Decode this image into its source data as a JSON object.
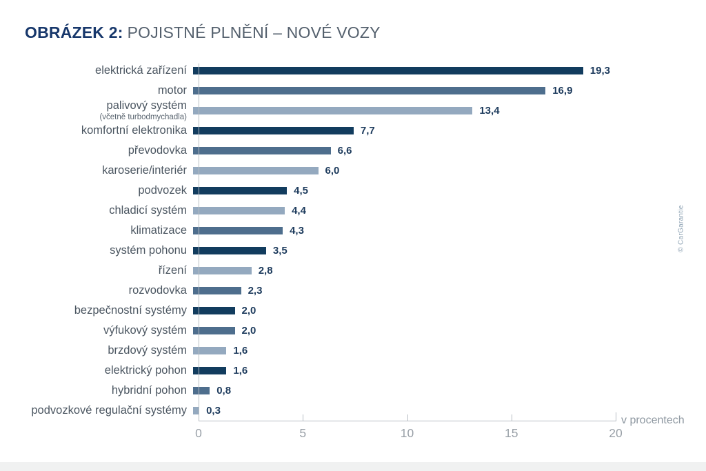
{
  "title": {
    "prefix": "OBRÁZEK 2:",
    "rest": "POJISTNÉ PLNĚNÍ – NOVÉ VOZY"
  },
  "watermark": "© CarGarantie",
  "axis": {
    "unit_label": "v procentech",
    "tick_labels": [
      "0",
      "5",
      "10",
      "15",
      "20"
    ],
    "max": 20
  },
  "colors": {
    "dark": "#123c5e",
    "medium": "#4e6e8d",
    "light": "#94a9bf"
  },
  "chart_data": {
    "type": "bar",
    "orientation": "horizontal",
    "title": "OBRÁZEK 2: POJISTNÉ PLNĚNÍ – NOVÉ VOZY",
    "xlabel": "v procentech",
    "xlim": [
      0,
      20
    ],
    "x_ticks": [
      0,
      5,
      10,
      15,
      20
    ],
    "grid": false,
    "legend": "none",
    "rows": [
      {
        "label": "elektrická zařízení",
        "sublabel": "",
        "value": 19.3,
        "display": "19,3",
        "color": "dark"
      },
      {
        "label": "motor",
        "sublabel": "",
        "value": 16.9,
        "display": "16,9",
        "color": "medium"
      },
      {
        "label": "palivový systém",
        "sublabel": "(včetně turbodmychadla)",
        "value": 13.4,
        "display": "13,4",
        "color": "light"
      },
      {
        "label": "komfortní elektronika",
        "sublabel": "",
        "value": 7.7,
        "display": "7,7",
        "color": "dark"
      },
      {
        "label": "převodovka",
        "sublabel": "",
        "value": 6.6,
        "display": "6,6",
        "color": "medium"
      },
      {
        "label": "karoserie/interiér",
        "sublabel": "",
        "value": 6.0,
        "display": "6,0",
        "color": "light"
      },
      {
        "label": "podvozek",
        "sublabel": "",
        "value": 4.5,
        "display": "4,5",
        "color": "dark"
      },
      {
        "label": "chladicí systém",
        "sublabel": "",
        "value": 4.4,
        "display": "4,4",
        "color": "light"
      },
      {
        "label": "klimatizace",
        "sublabel": "",
        "value": 4.3,
        "display": "4,3",
        "color": "medium"
      },
      {
        "label": "systém pohonu",
        "sublabel": "",
        "value": 3.5,
        "display": "3,5",
        "color": "dark"
      },
      {
        "label": "řízení",
        "sublabel": "",
        "value": 2.8,
        "display": "2,8",
        "color": "light"
      },
      {
        "label": "rozvodovka",
        "sublabel": "",
        "value": 2.3,
        "display": "2,3",
        "color": "medium"
      },
      {
        "label": "bezpečnostní systémy",
        "sublabel": "",
        "value": 2.0,
        "display": "2,0",
        "color": "dark"
      },
      {
        "label": "výfukový systém",
        "sublabel": "",
        "value": 2.0,
        "display": "2,0",
        "color": "medium"
      },
      {
        "label": "brzdový systém",
        "sublabel": "",
        "value": 1.6,
        "display": "1,6",
        "color": "light"
      },
      {
        "label": "elektrický pohon",
        "sublabel": "",
        "value": 1.6,
        "display": "1,6",
        "color": "dark"
      },
      {
        "label": "hybridní pohon",
        "sublabel": "",
        "value": 0.8,
        "display": "0,8",
        "color": "medium"
      },
      {
        "label": "podvozkové regulační systémy",
        "sublabel": "",
        "value": 0.3,
        "display": "0,3",
        "color": "light"
      }
    ]
  }
}
